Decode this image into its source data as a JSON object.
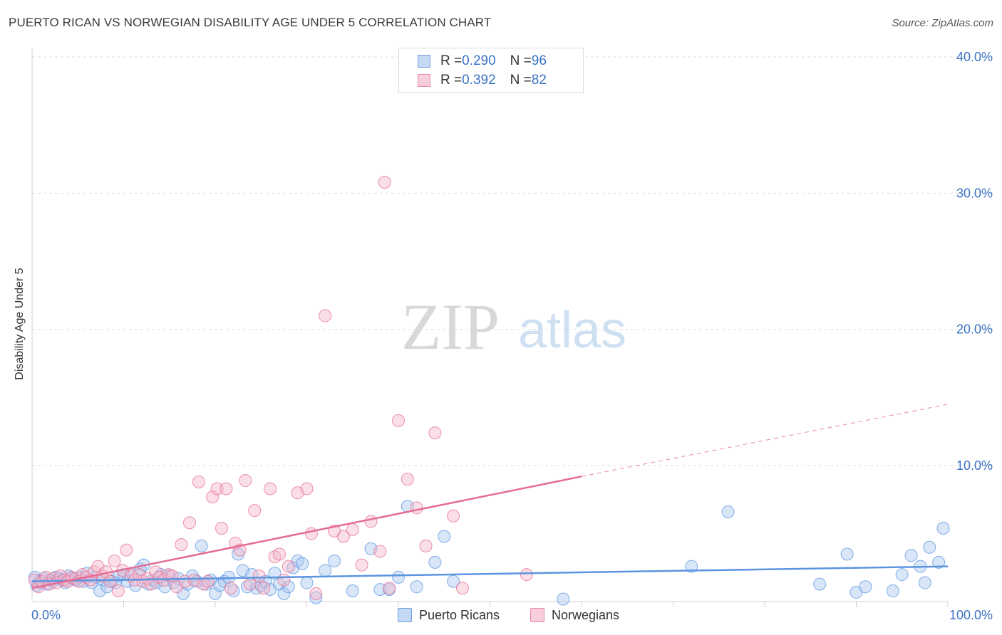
{
  "header": {
    "title": "PUERTO RICAN VS NORWEGIAN DISABILITY AGE UNDER 5 CORRELATION CHART",
    "source": "Source: ZipAtlas.com"
  },
  "watermark": {
    "zip": "ZIP",
    "atlas": "atlas"
  },
  "legend": {
    "rows": [
      {
        "r_label": "R = ",
        "r_value": "0.290",
        "n_label": "N = ",
        "n_value": "96",
        "color": "#a8c8f0"
      },
      {
        "r_label": "R = ",
        "r_value": "0.392",
        "n_label": "N = ",
        "n_value": "82",
        "color": "#f5b8cb"
      }
    ]
  },
  "bottom_legend": [
    {
      "label": "Puerto Ricans",
      "color": "#a8c8f0"
    },
    {
      "label": "Norwegians",
      "color": "#f5b8cb"
    }
  ],
  "chart_data": {
    "type": "scatter",
    "title": "PUERTO RICAN VS NORWEGIAN DISABILITY AGE UNDER 5 CORRELATION CHART",
    "xlabel": "",
    "ylabel": "Disability Age Under 5",
    "xlim": [
      0,
      100
    ],
    "ylim": [
      0,
      42
    ],
    "x_tick_labels": [
      "0.0%",
      "100.0%"
    ],
    "y_ticks": [
      10,
      20,
      30,
      40
    ],
    "y_tick_labels": [
      "10.0%",
      "20.0%",
      "30.0%",
      "40.0%"
    ],
    "grid": true,
    "legend_position": "top-center",
    "series": [
      {
        "name": "Puerto Ricans",
        "color": "#5b95e0",
        "fill": "#a8c8f0",
        "trend": {
          "x": [
            0,
            100
          ],
          "y": [
            1.5,
            2.6
          ]
        },
        "points": [
          [
            0.3,
            1.8
          ],
          [
            0.5,
            1.2
          ],
          [
            0.8,
            1.5
          ],
          [
            1,
            1.4
          ],
          [
            1.3,
            1.7
          ],
          [
            1.6,
            1.3
          ],
          [
            2,
            1.6
          ],
          [
            2.3,
            1.5
          ],
          [
            2.6,
            1.8
          ],
          [
            3,
            1.7
          ],
          [
            3.3,
            1.6
          ],
          [
            3.6,
            1.4
          ],
          [
            4,
            1.9
          ],
          [
            4.4,
            1.7
          ],
          [
            4.8,
            1.6
          ],
          [
            5.2,
            1.8
          ],
          [
            5.6,
            1.5
          ],
          [
            6,
            2.1
          ],
          [
            6.5,
            1.4
          ],
          [
            7,
            1.8
          ],
          [
            7.4,
            0.8
          ],
          [
            7.8,
            1.6
          ],
          [
            8.2,
            1.1
          ],
          [
            8.7,
            1.5
          ],
          [
            9.1,
            1.4
          ],
          [
            9.5,
            1.9
          ],
          [
            10,
            2.0
          ],
          [
            10.4,
            1.5
          ],
          [
            10.9,
            2.1
          ],
          [
            11.3,
            1.2
          ],
          [
            11.8,
            2.4
          ],
          [
            12.2,
            2.7
          ],
          [
            12.7,
            1.3
          ],
          [
            13.2,
            1.6
          ],
          [
            13.6,
            1.4
          ],
          [
            14.1,
            2.0
          ],
          [
            14.5,
            1.1
          ],
          [
            15,
            1.9
          ],
          [
            15.5,
            1.4
          ],
          [
            16,
            1.7
          ],
          [
            16.5,
            0.6
          ],
          [
            17,
            1.3
          ],
          [
            17.5,
            1.9
          ],
          [
            18,
            1.5
          ],
          [
            18.5,
            4.1
          ],
          [
            19,
            1.3
          ],
          [
            19.5,
            1.6
          ],
          [
            20,
            0.6
          ],
          [
            20.5,
            1.2
          ],
          [
            21,
            1.5
          ],
          [
            21.5,
            1.8
          ],
          [
            22,
            0.8
          ],
          [
            22.5,
            3.5
          ],
          [
            23,
            2.3
          ],
          [
            23.5,
            1.1
          ],
          [
            24,
            2.0
          ],
          [
            24.5,
            1.0
          ],
          [
            25,
            1.2
          ],
          [
            25.5,
            1.5
          ],
          [
            26,
            0.9
          ],
          [
            26.5,
            2.1
          ],
          [
            27,
            1.3
          ],
          [
            27.5,
            0.6
          ],
          [
            28,
            1.1
          ],
          [
            28.5,
            2.5
          ],
          [
            29,
            3.0
          ],
          [
            29.5,
            2.8
          ],
          [
            30,
            1.4
          ],
          [
            31,
            0.3
          ],
          [
            32,
            2.3
          ],
          [
            33,
            3.0
          ],
          [
            35,
            0.8
          ],
          [
            37,
            3.9
          ],
          [
            38,
            0.9
          ],
          [
            39,
            0.9
          ],
          [
            40,
            1.8
          ],
          [
            41,
            7.0
          ],
          [
            42,
            1.1
          ],
          [
            44,
            2.9
          ],
          [
            45,
            4.8
          ],
          [
            46,
            1.5
          ],
          [
            58,
            0.2
          ],
          [
            72,
            2.6
          ],
          [
            76,
            6.6
          ],
          [
            86,
            1.3
          ],
          [
            89,
            3.5
          ],
          [
            90,
            0.7
          ],
          [
            91,
            1.1
          ],
          [
            94,
            0.8
          ],
          [
            95,
            2.0
          ],
          [
            96,
            3.4
          ],
          [
            97,
            2.6
          ],
          [
            98,
            4.0
          ],
          [
            99,
            2.9
          ],
          [
            99.5,
            5.4
          ],
          [
            97.5,
            1.4
          ]
        ]
      },
      {
        "name": "Norwegians",
        "color": "#e56b93",
        "fill": "#f5b8cb",
        "trend": {
          "x": [
            0,
            60
          ],
          "y": [
            1.0,
            9.2
          ]
        },
        "trend_extension": {
          "x": [
            60,
            100
          ],
          "y": [
            9.2,
            14.5
          ]
        },
        "points": [
          [
            0.3,
            1.6
          ],
          [
            0.7,
            1.1
          ],
          [
            1.1,
            1.5
          ],
          [
            1.5,
            1.8
          ],
          [
            1.9,
            1.3
          ],
          [
            2.3,
            1.7
          ],
          [
            2.7,
            1.4
          ],
          [
            3.1,
            1.9
          ],
          [
            3.5,
            1.6
          ],
          [
            3.9,
            1.5
          ],
          [
            4.3,
            1.8
          ],
          [
            4.7,
            1.7
          ],
          [
            5.1,
            1.5
          ],
          [
            5.5,
            2.0
          ],
          [
            5.9,
            1.8
          ],
          [
            6.4,
            1.6
          ],
          [
            6.8,
            2.2
          ],
          [
            7.2,
            2.6
          ],
          [
            7.7,
            1.9
          ],
          [
            8.1,
            2.2
          ],
          [
            8.5,
            1.5
          ],
          [
            9,
            3.0
          ],
          [
            9.4,
            0.8
          ],
          [
            9.9,
            2.3
          ],
          [
            10.3,
            3.8
          ],
          [
            10.8,
            1.9
          ],
          [
            11.2,
            1.6
          ],
          [
            11.7,
            2.0
          ],
          [
            12.1,
            1.5
          ],
          [
            12.6,
            1.7
          ],
          [
            13,
            1.3
          ],
          [
            13.5,
            2.2
          ],
          [
            13.9,
            1.8
          ],
          [
            14.4,
            1.6
          ],
          [
            14.9,
            2.0
          ],
          [
            15.3,
            1.9
          ],
          [
            15.8,
            1.1
          ],
          [
            16.3,
            4.2
          ],
          [
            16.7,
            1.5
          ],
          [
            17.2,
            5.8
          ],
          [
            17.7,
            1.6
          ],
          [
            18.2,
            8.8
          ],
          [
            18.7,
            1.3
          ],
          [
            19.2,
            1.5
          ],
          [
            19.7,
            7.7
          ],
          [
            20.2,
            8.3
          ],
          [
            20.7,
            5.4
          ],
          [
            21.2,
            8.3
          ],
          [
            21.7,
            1.0
          ],
          [
            22.2,
            4.3
          ],
          [
            22.7,
            3.8
          ],
          [
            23.3,
            8.9
          ],
          [
            23.8,
            1.3
          ],
          [
            24.3,
            6.7
          ],
          [
            24.8,
            1.9
          ],
          [
            25.3,
            1.0
          ],
          [
            26,
            8.3
          ],
          [
            26.5,
            3.3
          ],
          [
            27,
            3.5
          ],
          [
            27.5,
            1.6
          ],
          [
            28,
            2.6
          ],
          [
            29,
            8.0
          ],
          [
            30,
            8.3
          ],
          [
            30.5,
            5.0
          ],
          [
            31,
            0.6
          ],
          [
            32,
            21.0
          ],
          [
            33,
            5.2
          ],
          [
            34,
            4.8
          ],
          [
            35,
            5.3
          ],
          [
            36,
            2.7
          ],
          [
            37,
            5.9
          ],
          [
            38,
            3.7
          ],
          [
            39,
            1.0
          ],
          [
            38.5,
            30.8
          ],
          [
            40,
            13.3
          ],
          [
            41,
            9.0
          ],
          [
            42,
            6.9
          ],
          [
            43,
            4.1
          ],
          [
            44,
            12.4
          ],
          [
            46,
            6.3
          ],
          [
            47,
            1.0
          ],
          [
            54,
            2.0
          ]
        ]
      }
    ]
  }
}
